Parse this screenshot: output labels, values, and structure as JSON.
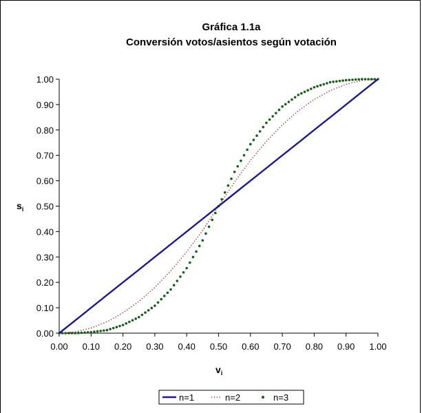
{
  "chart_data": {
    "type": "line",
    "title_line1": "Gráfica 1.1a",
    "title_line2": "Conversión votos/asientos según votación",
    "xlabel": {
      "main": "v",
      "sub": "i"
    },
    "ylabel": {
      "main": "s",
      "sub": "i"
    },
    "xlim": [
      0,
      1
    ],
    "ylim": [
      0,
      1
    ],
    "x_ticks": [
      "0.00",
      "0.10",
      "0.20",
      "0.30",
      "0.40",
      "0.50",
      "0.60",
      "0.70",
      "0.80",
      "0.90",
      "1.00"
    ],
    "y_ticks": [
      "0.00",
      "0.10",
      "0.20",
      "0.30",
      "0.40",
      "0.50",
      "0.60",
      "0.70",
      "0.80",
      "0.90",
      "1.00"
    ],
    "x": [
      0.0,
      0.05,
      0.1,
      0.15,
      0.2,
      0.25,
      0.3,
      0.35,
      0.4,
      0.45,
      0.5,
      0.55,
      0.6,
      0.65,
      0.7,
      0.75,
      0.8,
      0.85,
      0.9,
      0.95,
      1.0
    ],
    "series": [
      {
        "name": "n=1",
        "color": "#1a1a8c",
        "style": "solid",
        "values": [
          0.0,
          0.05,
          0.1,
          0.15,
          0.2,
          0.25,
          0.3,
          0.35,
          0.4,
          0.45,
          0.5,
          0.55,
          0.6,
          0.65,
          0.7,
          0.75,
          0.8,
          0.85,
          0.9,
          0.95,
          1.0
        ]
      },
      {
        "name": "n=2",
        "color": "#8b1a1a",
        "style": "dotted",
        "values": [
          0.0,
          0.005,
          0.02,
          0.045,
          0.08,
          0.125,
          0.18,
          0.245,
          0.32,
          0.405,
          0.5,
          0.595,
          0.68,
          0.755,
          0.82,
          0.875,
          0.92,
          0.955,
          0.98,
          0.995,
          1.0
        ]
      },
      {
        "name": "n=3",
        "color": "#1a5c1a",
        "style": "dots",
        "values": [
          0.0,
          0.0,
          0.004,
          0.012,
          0.032,
          0.063,
          0.108,
          0.172,
          0.256,
          0.365,
          0.5,
          0.635,
          0.744,
          0.828,
          0.892,
          0.938,
          0.968,
          0.988,
          0.996,
          1.0,
          1.0
        ]
      }
    ],
    "grid": false,
    "legend_position": "bottom"
  }
}
